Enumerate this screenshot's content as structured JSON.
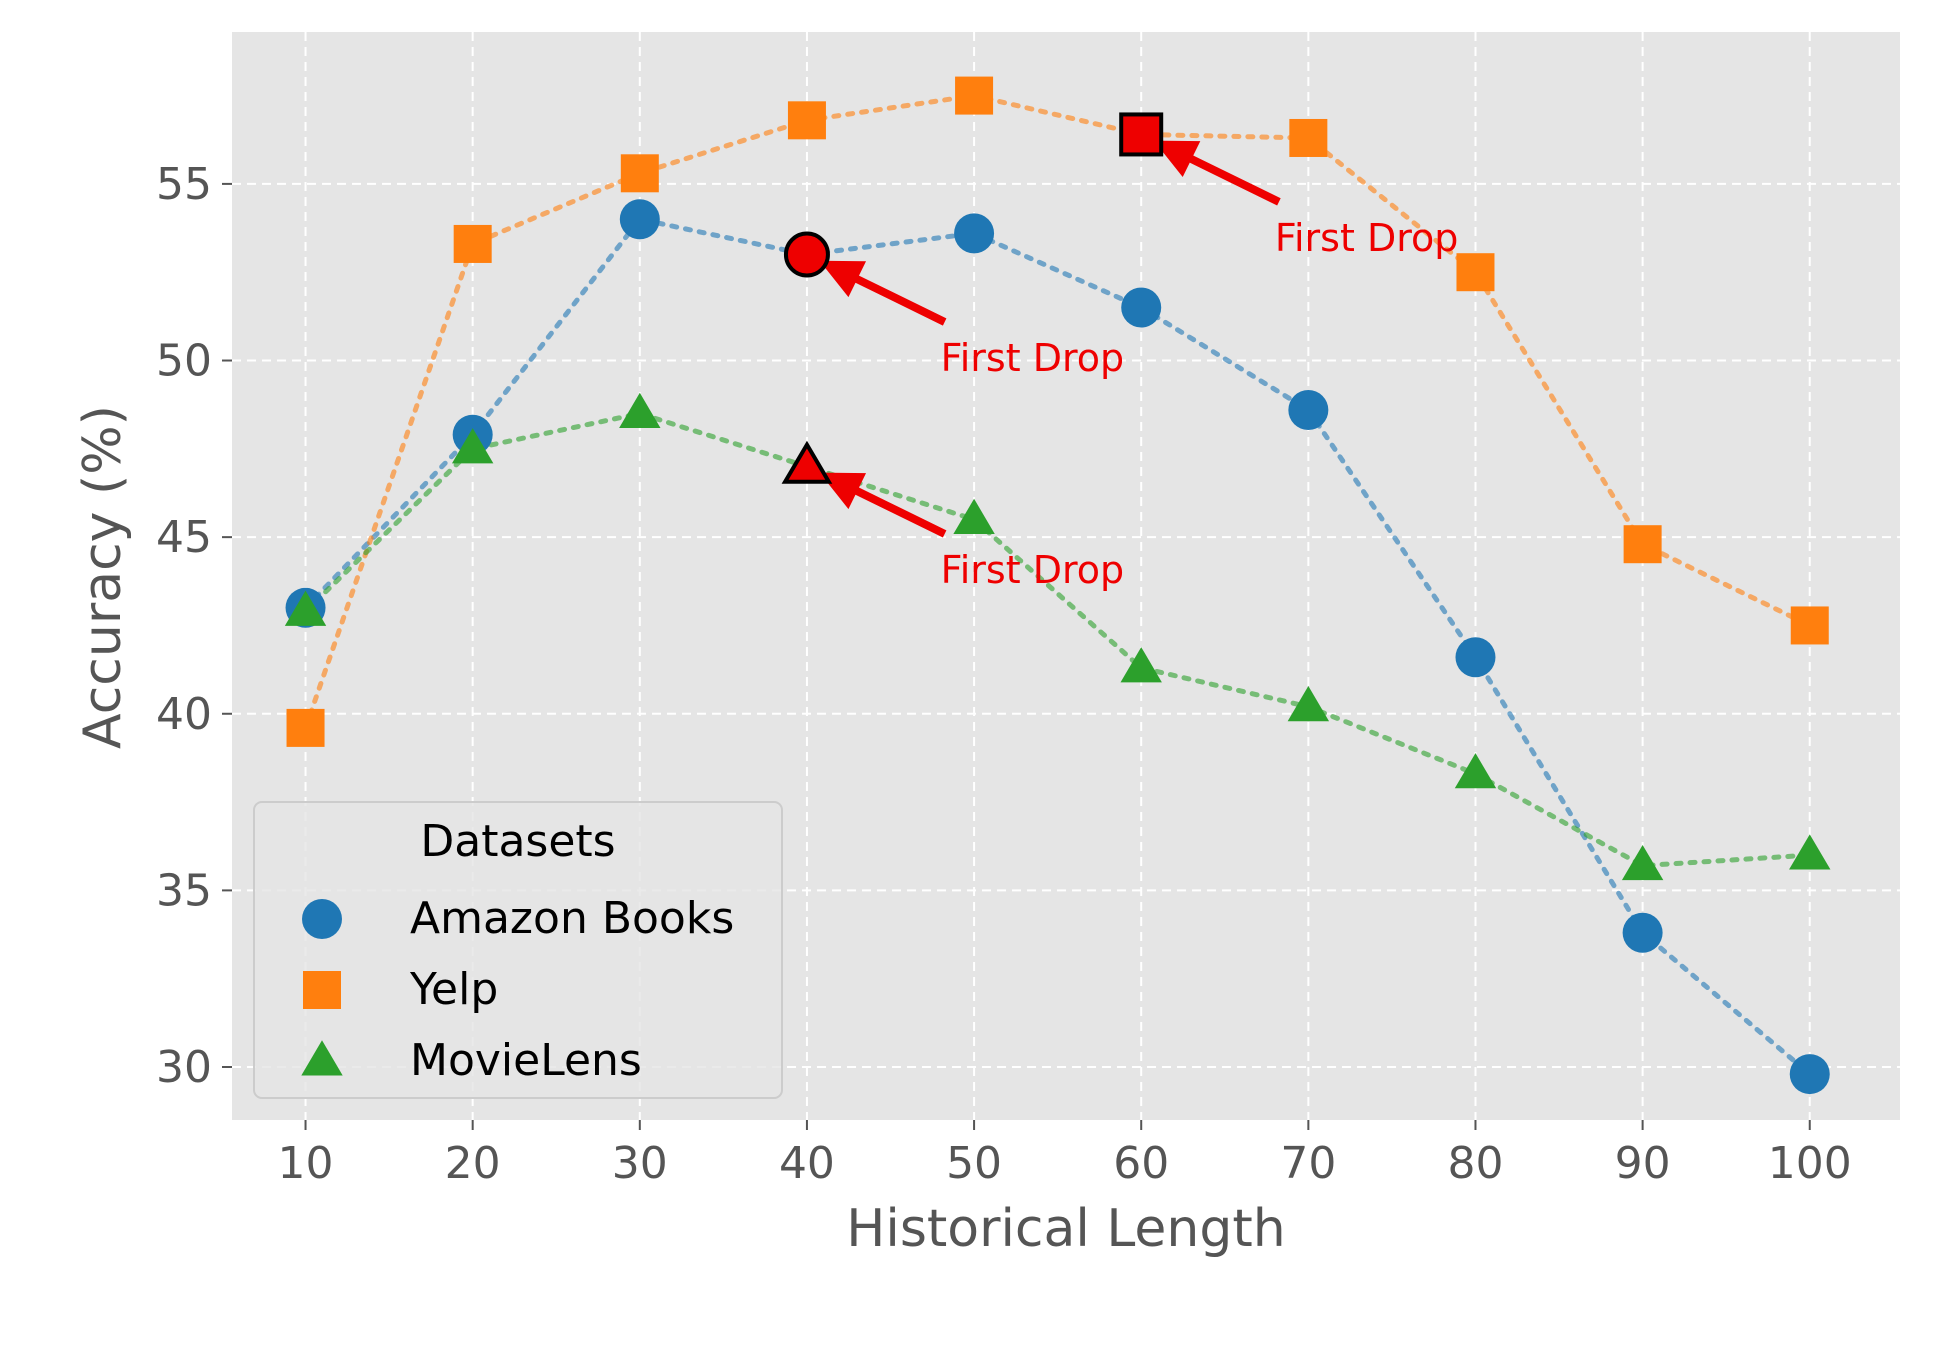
{
  "chart_data": {
    "type": "line",
    "xlabel": "Historical Length",
    "ylabel": "Accuracy (%)",
    "x": [
      10,
      20,
      30,
      40,
      50,
      60,
      70,
      80,
      90,
      100
    ],
    "xlim": [
      5.6,
      105.4
    ],
    "ylim": [
      28.5,
      59.3
    ],
    "xticks": [
      10,
      20,
      30,
      40,
      50,
      60,
      70,
      80,
      90,
      100
    ],
    "yticks": [
      30,
      35,
      40,
      45,
      50,
      55
    ],
    "grid": true,
    "legend": {
      "title": "Datasets",
      "position": "lower-left"
    },
    "series": [
      {
        "name": "Amazon Books",
        "marker": "circle",
        "color": "#1f77b4",
        "values": [
          43.0,
          47.9,
          54.0,
          53.0,
          53.6,
          51.5,
          48.6,
          41.6,
          33.8,
          29.8
        ]
      },
      {
        "name": "Yelp",
        "marker": "square",
        "color": "#ff7f0e",
        "values": [
          39.6,
          53.3,
          55.3,
          56.8,
          57.5,
          56.4,
          56.3,
          52.5,
          44.8,
          42.5
        ]
      },
      {
        "name": "MovieLens",
        "marker": "triangle",
        "color": "#2ca02c",
        "values": [
          42.9,
          47.5,
          48.5,
          47.0,
          45.5,
          41.3,
          40.2,
          38.3,
          35.7,
          36.0
        ]
      }
    ],
    "annotations": [
      {
        "text": "First Drop",
        "series": "Yelp",
        "x": 60,
        "y": 56.4,
        "text_x": 68.0,
        "text_y": 53.5
      },
      {
        "text": "First Drop",
        "series": "Amazon Books",
        "x": 40,
        "y": 53.0,
        "text_x": 48.0,
        "text_y": 50.1
      },
      {
        "text": "First Drop",
        "series": "MovieLens",
        "x": 40,
        "y": 47.0,
        "text_x": 48.0,
        "text_y": 44.1
      }
    ],
    "colors": {
      "plot_background": "#e5e5e5",
      "grid": "#ffffff",
      "annotation": "#ee0000"
    }
  }
}
